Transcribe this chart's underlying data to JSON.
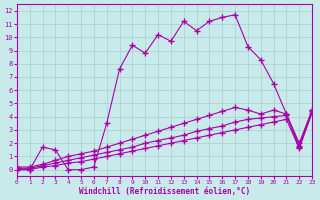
{
  "xlabel": "Windchill (Refroidissement éolien,°C)",
  "bg_color": "#c8eaea",
  "line_color": "#aa00aa",
  "grid_color": "#aacccc",
  "xlim": [
    0,
    23
  ],
  "ylim": [
    -0.5,
    12.5
  ],
  "xticks": [
    0,
    1,
    2,
    3,
    4,
    5,
    6,
    7,
    8,
    9,
    10,
    11,
    12,
    13,
    14,
    15,
    16,
    17,
    18,
    19,
    20,
    21,
    22,
    23
  ],
  "yticks": [
    0,
    1,
    2,
    3,
    4,
    5,
    6,
    7,
    8,
    9,
    10,
    11,
    12
  ],
  "line1_x": [
    0,
    1,
    2,
    3,
    4,
    5,
    6,
    7,
    8,
    9,
    10,
    11,
    12,
    13,
    14,
    15,
    16,
    17,
    18,
    19,
    20,
    21,
    22,
    23
  ],
  "line1_y": [
    0,
    0,
    1.7,
    1.5,
    0,
    0,
    0.2,
    3.5,
    7.6,
    9.4,
    8.8,
    10.2,
    9.7,
    11.2,
    10.5,
    11.2,
    11.5,
    11.7,
    9.3,
    8.3,
    6.5,
    4.2,
    2.0,
    4.5
  ],
  "line2_x": [
    0,
    1,
    2,
    3,
    4,
    5,
    6,
    7,
    8,
    9,
    10,
    11,
    12,
    13,
    14,
    15,
    16,
    17,
    18,
    19,
    20,
    21,
    22,
    23
  ],
  "line2_y": [
    0.2,
    0.2,
    0.4,
    0.7,
    1.0,
    1.2,
    1.4,
    1.7,
    2.0,
    2.3,
    2.6,
    2.9,
    3.2,
    3.5,
    3.8,
    4.1,
    4.4,
    4.7,
    4.5,
    4.2,
    4.5,
    4.2,
    1.8,
    4.5
  ],
  "line3_x": [
    0,
    1,
    2,
    3,
    4,
    5,
    6,
    7,
    8,
    9,
    10,
    11,
    12,
    13,
    14,
    15,
    16,
    17,
    18,
    19,
    20,
    21,
    22,
    23
  ],
  "line3_y": [
    0.1,
    0.1,
    0.3,
    0.5,
    0.7,
    0.9,
    1.1,
    1.3,
    1.5,
    1.7,
    2.0,
    2.2,
    2.4,
    2.6,
    2.9,
    3.1,
    3.3,
    3.6,
    3.8,
    3.9,
    4.0,
    4.1,
    1.7,
    4.4
  ],
  "line4_x": [
    0,
    1,
    2,
    3,
    4,
    5,
    6,
    7,
    8,
    9,
    10,
    11,
    12,
    13,
    14,
    15,
    16,
    17,
    18,
    19,
    20,
    21,
    22,
    23
  ],
  "line4_y": [
    0.0,
    0.0,
    0.2,
    0.3,
    0.5,
    0.6,
    0.8,
    1.0,
    1.2,
    1.4,
    1.6,
    1.8,
    2.0,
    2.2,
    2.4,
    2.6,
    2.8,
    3.0,
    3.2,
    3.4,
    3.6,
    3.8,
    1.6,
    4.3
  ]
}
